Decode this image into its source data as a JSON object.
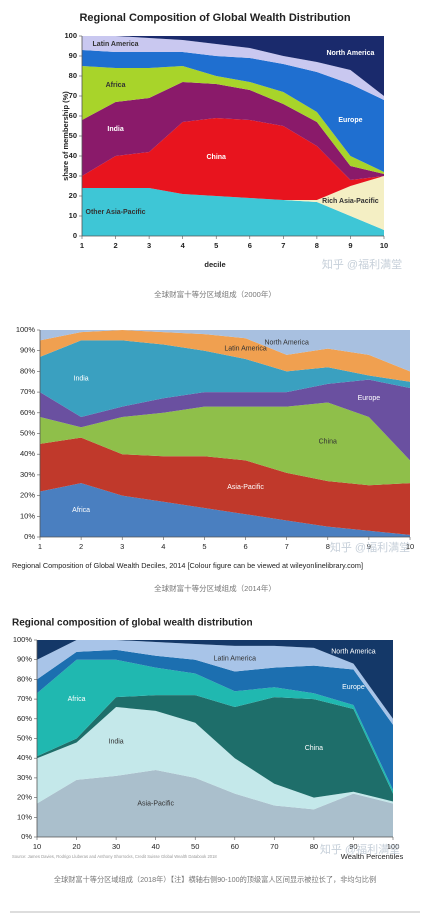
{
  "chart_data": [
    {
      "type": "area",
      "title": "Regional Composition of Global Wealth Distribution",
      "xlabel": "decile",
      "ylabel": "share of membership (%)",
      "caption": "全球财富十等分区域组成（2000年）",
      "watermark": "知乎 @福利满堂",
      "x": [
        1,
        2,
        3,
        4,
        5,
        6,
        7,
        8,
        9,
        10
      ],
      "xlim": [
        1,
        10
      ],
      "xticks": [
        1,
        2,
        3,
        4,
        5,
        6,
        7,
        8,
        9,
        10
      ],
      "ylim": [
        0,
        100
      ],
      "yticks": [
        0,
        10,
        20,
        30,
        40,
        50,
        60,
        70,
        80,
        90,
        100
      ],
      "series": [
        {
          "name": "Other Asia-Pacific",
          "color": "#3ec6d6",
          "values": [
            24,
            24,
            24,
            21,
            20,
            19,
            18,
            17,
            10,
            3
          ]
        },
        {
          "name": "Rich Asia-Pacific",
          "color": "#f4efc4",
          "values": [
            0,
            0,
            0,
            0,
            0,
            0,
            0,
            1,
            15,
            27
          ]
        },
        {
          "name": "China",
          "color": "#e8141e",
          "values": [
            6,
            16,
            18,
            36,
            39,
            39,
            37,
            27,
            3,
            0
          ]
        },
        {
          "name": "India",
          "color": "#8a1a6a",
          "values": [
            28,
            27,
            27,
            20,
            17,
            15,
            11,
            12,
            7,
            1
          ]
        },
        {
          "name": "Africa",
          "color": "#a8d42a",
          "values": [
            27,
            17,
            15,
            8,
            4,
            4,
            6,
            5,
            5,
            1
          ]
        },
        {
          "name": "Europe",
          "color": "#1f6fd0",
          "values": [
            8,
            8,
            8,
            7,
            10,
            12,
            14,
            20,
            36,
            36
          ]
        },
        {
          "name": "Latin America",
          "color": "#c9c8f0",
          "values": [
            7,
            8,
            7,
            6,
            6,
            5,
            4,
            5,
            7,
            2
          ]
        },
        {
          "name": "North America",
          "color": "#1a2a6c",
          "values": [
            0,
            0,
            1,
            2,
            4,
            6,
            10,
            13,
            17,
            30
          ]
        }
      ]
    },
    {
      "type": "area",
      "title": "Regional Composition of Global Wealth Deciles, 2014 [Colour figure can be viewed at wileyonlinelibrary.com]",
      "caption": "全球财富十等分区域组成（2014年）",
      "watermark": "知乎 @福利满堂",
      "x": [
        1,
        2,
        3,
        4,
        5,
        6,
        7,
        8,
        9,
        10
      ],
      "xlim": [
        1,
        10
      ],
      "xticks": [
        1,
        2,
        3,
        4,
        5,
        6,
        7,
        8,
        9,
        10
      ],
      "ylim": [
        0,
        100
      ],
      "yticks": [
        {
          "value": 0,
          "label": "0%"
        },
        {
          "value": 10,
          "label": "10%"
        },
        {
          "value": 20,
          "label": "20%"
        },
        {
          "value": 30,
          "label": "30%"
        },
        {
          "value": 40,
          "label": "40%"
        },
        {
          "value": 50,
          "label": "50%"
        },
        {
          "value": 60,
          "label": "60%"
        },
        {
          "value": 70,
          "label": "70%"
        },
        {
          "value": 80,
          "label": "80%"
        },
        {
          "value": 90,
          "label": "90%"
        },
        {
          "value": 100,
          "label": "100%"
        }
      ],
      "series": [
        {
          "name": "Africa",
          "color": "#4a7fc0",
          "values": [
            22,
            26,
            20,
            17,
            14,
            11,
            8,
            5,
            3,
            1
          ]
        },
        {
          "name": "Asia-Pacific",
          "color": "#c0392b",
          "values": [
            23,
            22,
            20,
            22,
            25,
            26,
            23,
            22,
            22,
            25
          ]
        },
        {
          "name": "China",
          "color": "#8fbf4a",
          "values": [
            13,
            5,
            18,
            21,
            24,
            26,
            32,
            38,
            33,
            11
          ]
        },
        {
          "name": "Europe",
          "color": "#6a50a0",
          "values": [
            12,
            5,
            5,
            7,
            7,
            7,
            7,
            9,
            18,
            35
          ]
        },
        {
          "name": "India",
          "color": "#3aa0c0",
          "values": [
            17,
            37,
            32,
            26,
            20,
            16,
            10,
            8,
            2,
            3
          ]
        },
        {
          "name": "Latin America",
          "color": "#f0a050",
          "values": [
            8,
            4,
            5,
            6,
            8,
            10,
            8,
            9,
            10,
            5
          ]
        },
        {
          "name": "North America",
          "color": "#a8c0e0",
          "values": [
            5,
            1,
            0,
            1,
            2,
            4,
            12,
            9,
            12,
            20
          ]
        }
      ]
    },
    {
      "type": "area",
      "title": "Regional composition of global wealth distribution",
      "xlabel": "Wealth Percentiles",
      "source": "Source: James Davies, Rodrigo Lluberas and Anthony Shorrocks, Credit Suisse Global Wealth Databook 2018",
      "caption": "全球财富十等分区域组成（2018年）【注】横轴右侧90-100的顶级富人区间显示被拉长了，非均匀比例",
      "watermark": "知乎 @福利满堂",
      "x": [
        10,
        20,
        30,
        40,
        50,
        60,
        70,
        80,
        90,
        100
      ],
      "xlim": [
        10,
        100
      ],
      "xticks": [
        10,
        20,
        30,
        40,
        50,
        60,
        70,
        80,
        90,
        100
      ],
      "ylim": [
        0,
        100
      ],
      "yticks": [
        {
          "value": 0,
          "label": "0%"
        },
        {
          "value": 10,
          "label": "10%"
        },
        {
          "value": 20,
          "label": "20%"
        },
        {
          "value": 30,
          "label": "30%"
        },
        {
          "value": 40,
          "label": "40%"
        },
        {
          "value": 50,
          "label": "50%"
        },
        {
          "value": 60,
          "label": "60%"
        },
        {
          "value": 70,
          "label": "70%"
        },
        {
          "value": 80,
          "label": "80%"
        },
        {
          "value": 90,
          "label": "90%"
        },
        {
          "value": 100,
          "label": "100%"
        }
      ],
      "series": [
        {
          "name": "Asia-Pacific",
          "color": "#aabfcc",
          "values": [
            17,
            29,
            31,
            34,
            30,
            22,
            16,
            14,
            22,
            17
          ]
        },
        {
          "name": "India",
          "color": "#c4e8ea",
          "values": [
            23,
            19,
            35,
            30,
            28,
            18,
            11,
            6,
            1,
            1
          ]
        },
        {
          "name": "China",
          "color": "#1e6e6a",
          "values": [
            1,
            2,
            5,
            8,
            14,
            26,
            44,
            50,
            42,
            4
          ]
        },
        {
          "name": "Africa",
          "color": "#20b8b0",
          "values": [
            32,
            40,
            19,
            14,
            11,
            8,
            5,
            3,
            2,
            2
          ]
        },
        {
          "name": "Europe",
          "color": "#1c6fb0",
          "values": [
            7,
            4,
            5,
            6,
            7,
            10,
            10,
            14,
            18,
            33
          ]
        },
        {
          "name": "Latin America",
          "color": "#a8c4e8",
          "values": [
            10,
            6,
            5,
            7,
            8,
            13,
            11,
            9,
            3,
            3
          ]
        },
        {
          "name": "North America",
          "color": "#143868",
          "values": [
            10,
            0,
            0,
            1,
            2,
            3,
            3,
            4,
            12,
            40
          ]
        }
      ]
    }
  ]
}
